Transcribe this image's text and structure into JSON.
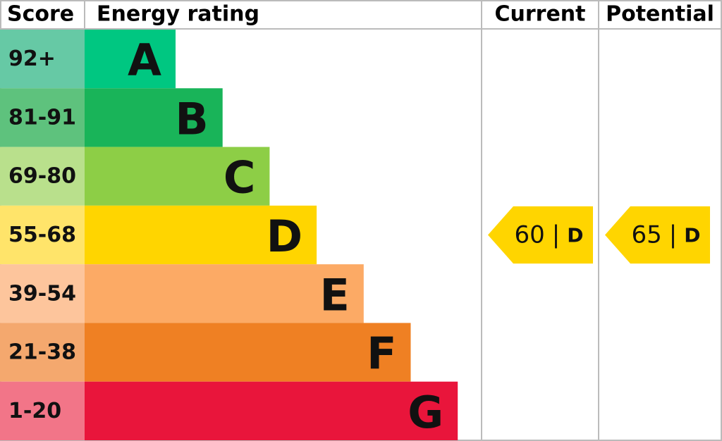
{
  "header": {
    "score": "Score",
    "rating": "Energy rating",
    "current": "Current",
    "potential": "Potential"
  },
  "bands": [
    {
      "score": "92+",
      "letter": "A",
      "color": "#00c781",
      "score_color": "#66c9a5"
    },
    {
      "score": "81-91",
      "letter": "B",
      "color": "#19b459",
      "score_color": "#5ec27d"
    },
    {
      "score": "69-80",
      "letter": "C",
      "color": "#8dce46",
      "score_color": "#b9e08c"
    },
    {
      "score": "55-68",
      "letter": "D",
      "color": "#ffd500",
      "score_color": "#ffe46a"
    },
    {
      "score": "39-54",
      "letter": "E",
      "color": "#fcaa65",
      "score_color": "#fdc59c"
    },
    {
      "score": "21-38",
      "letter": "F",
      "color": "#ef8023",
      "score_color": "#f4a86e"
    },
    {
      "score": "1-20",
      "letter": "G",
      "color": "#e9153b",
      "score_color": "#f27588"
    }
  ],
  "separator": "|",
  "current": {
    "value": 60,
    "letter": "D"
  },
  "potential": {
    "value": 65,
    "letter": "D"
  }
}
